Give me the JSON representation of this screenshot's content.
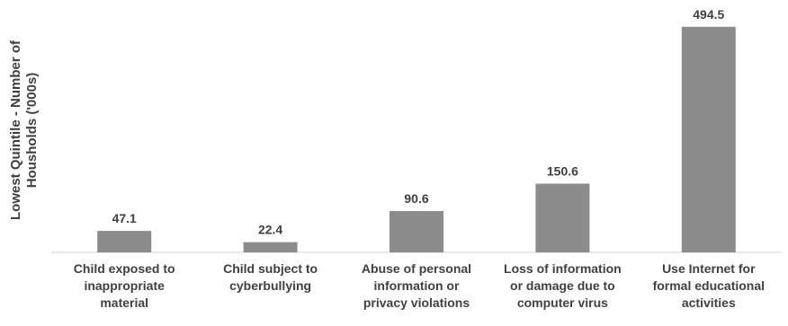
{
  "chart_data": {
    "type": "bar",
    "title": "",
    "xlabel": "",
    "ylabel_lines": [
      "Lowest Quintile - Number of",
      "Housholds ('000s)"
    ],
    "categories": [
      "Child exposed to inappropriate material",
      "Child subject to cyberbullying",
      "Abuse of personal information or privacy violations",
      "Loss of information or damage due to computer virus",
      "Use Internet for formal educational activities"
    ],
    "category_lines": [
      [
        "Child exposed to",
        "inappropriate",
        "material"
      ],
      [
        "Child subject to",
        "cyberbullying"
      ],
      [
        "Abuse of personal",
        "information or",
        "privacy violations"
      ],
      [
        "Loss of information",
        "or damage due to",
        "computer virus"
      ],
      [
        "Use Internet for",
        "formal educational",
        "activities"
      ]
    ],
    "values": [
      47.1,
      22.4,
      90.6,
      150.6,
      494.5
    ],
    "value_labels": [
      "47.1",
      "22.4",
      "90.6",
      "150.6",
      "494.5"
    ],
    "ylim": [
      0,
      500
    ],
    "grid": false,
    "legend": "none",
    "bar_color": "#8c8c8c",
    "axis_color": "#d0d0d0",
    "label_color": "#404040"
  }
}
